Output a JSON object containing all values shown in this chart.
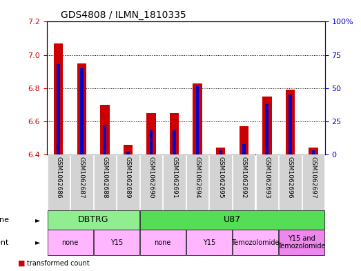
{
  "title": "GDS4808 / ILMN_1810335",
  "samples": [
    "GSM1062686",
    "GSM1062687",
    "GSM1062688",
    "GSM1062689",
    "GSM1062690",
    "GSM1062691",
    "GSM1062694",
    "GSM1062695",
    "GSM1062692",
    "GSM1062693",
    "GSM1062696",
    "GSM1062697"
  ],
  "transformed_count": [
    7.07,
    6.95,
    6.7,
    6.46,
    6.65,
    6.65,
    6.83,
    6.44,
    6.57,
    6.75,
    6.79,
    6.44
  ],
  "percentile_rank": [
    68,
    65,
    22,
    2,
    18,
    18,
    52,
    3,
    8,
    38,
    45,
    3
  ],
  "ylim_left": [
    6.4,
    7.2
  ],
  "ylim_right": [
    0,
    100
  ],
  "yticks_left": [
    6.4,
    6.6,
    6.8,
    7.0,
    7.2
  ],
  "yticks_right": [
    0,
    25,
    50,
    75,
    100
  ],
  "bar_color_red": "#CC0000",
  "bar_color_blue": "#0000CC",
  "bar_width": 0.4,
  "background_color": "#ffffff",
  "tick_color_left": "#CC0000",
  "tick_color_right": "#0000CC",
  "xticklabel_bg": "#D3D3D3",
  "cell_line_data": [
    {
      "label": "DBTRG",
      "cols": 4,
      "color": "#90EE90"
    },
    {
      "label": "U87",
      "cols": 8,
      "color": "#55DD55"
    }
  ],
  "agent_data": [
    {
      "label": "none",
      "start": 0,
      "end": 2,
      "color": "#FFB6FF"
    },
    {
      "label": "Y15",
      "start": 2,
      "end": 4,
      "color": "#FFB6FF"
    },
    {
      "label": "none",
      "start": 4,
      "end": 6,
      "color": "#FFB6FF"
    },
    {
      "label": "Y15",
      "start": 6,
      "end": 8,
      "color": "#FFB6FF"
    },
    {
      "label": "Temozolomide",
      "start": 8,
      "end": 10,
      "color": "#FFB6FF"
    },
    {
      "label": "Y15 and\nTemozolomide",
      "start": 10,
      "end": 12,
      "color": "#EE88EE"
    }
  ]
}
